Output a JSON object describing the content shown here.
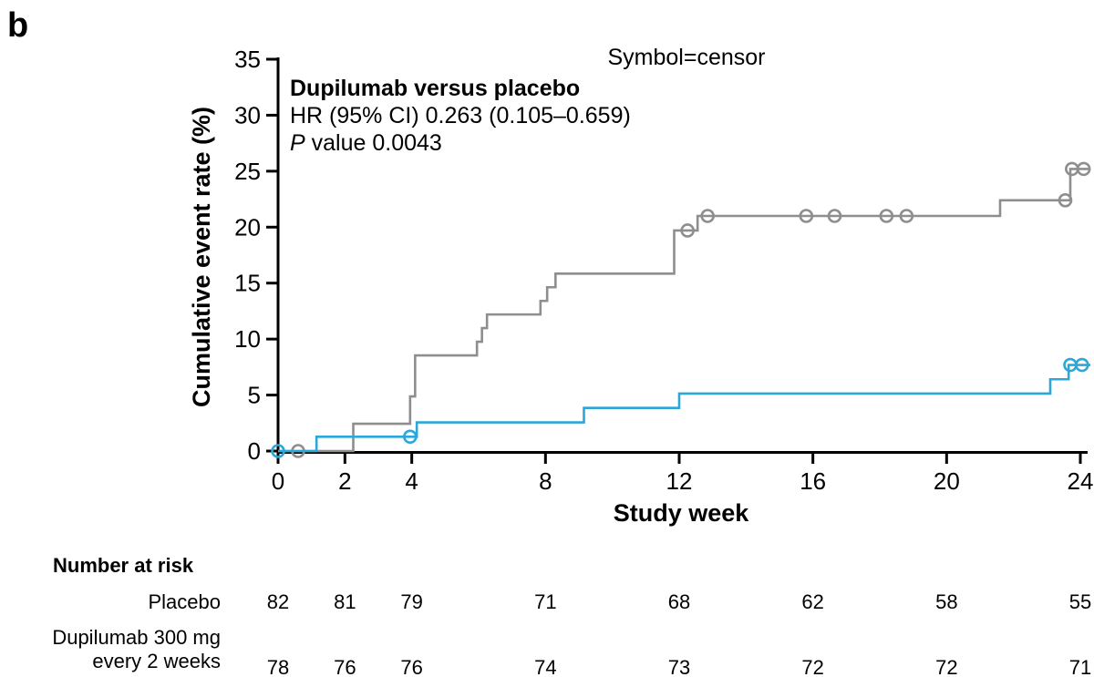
{
  "panel_label": "b",
  "annotations": {
    "censor_legend": "Symbol=censor",
    "comparison_title": "Dupilumab versus placebo",
    "hr_line": "HR (95% CI) 0.263 (0.105–0.659)",
    "p_italic": "P",
    "p_rest": " value 0.0043"
  },
  "colors": {
    "placebo": "#8E8E8E",
    "dupilumab": "#2BA7DA",
    "axis": "#000000"
  },
  "chart_data": {
    "type": "line",
    "subtype": "kaplan-meier-step",
    "title": "Dupilumab versus placebo",
    "xlabel": "Study week",
    "ylabel": "Cumulative event rate (%)",
    "xlim": [
      0,
      24.3
    ],
    "ylim": [
      0,
      35
    ],
    "x_ticks": [
      0,
      2,
      4,
      8,
      12,
      16,
      20,
      24
    ],
    "y_ticks": [
      0,
      5,
      10,
      15,
      20,
      25,
      30,
      35
    ],
    "legend_note": "Symbol=censor",
    "series": [
      {
        "name": "Placebo",
        "color": "#8E8E8E",
        "start": [
          0,
          0
        ],
        "end_week": 24.3,
        "steps": [
          [
            2.25,
            2.44
          ],
          [
            3.95,
            4.88
          ],
          [
            4.1,
            8.54
          ],
          [
            5.95,
            9.76
          ],
          [
            6.1,
            10.98
          ],
          [
            6.25,
            12.2
          ],
          [
            7.85,
            13.41
          ],
          [
            8.05,
            14.63
          ],
          [
            8.3,
            15.85
          ],
          [
            11.85,
            19.7
          ],
          [
            12.55,
            21.0
          ],
          [
            21.6,
            22.4
          ],
          [
            23.7,
            25.2
          ]
        ],
        "censors": [
          [
            0.6,
            0
          ],
          [
            12.25,
            19.7
          ],
          [
            12.85,
            21.0
          ],
          [
            15.8,
            21.0
          ],
          [
            16.65,
            21.0
          ],
          [
            18.2,
            21.0
          ],
          [
            18.8,
            21.0
          ],
          [
            23.55,
            22.4
          ],
          [
            23.75,
            25.2
          ],
          [
            24.1,
            25.2
          ]
        ]
      },
      {
        "name": "Dupilumab 300 mg every 2 weeks",
        "color": "#2BA7DA",
        "start": [
          0,
          0
        ],
        "end_week": 24.3,
        "steps": [
          [
            1.15,
            1.28
          ],
          [
            4.15,
            2.56
          ],
          [
            9.15,
            3.85
          ],
          [
            12.0,
            5.13
          ],
          [
            23.1,
            6.41
          ],
          [
            23.65,
            7.69
          ]
        ],
        "censors": [
          [
            0,
            0
          ],
          [
            3.95,
            1.28
          ],
          [
            23.7,
            7.69
          ],
          [
            24.05,
            7.69
          ]
        ]
      }
    ]
  },
  "at_risk": {
    "title": "Number at risk",
    "weeks": [
      0,
      2,
      4,
      8,
      12,
      16,
      20,
      24
    ],
    "rows": [
      {
        "label_line1": "Placebo",
        "label_line2": "",
        "values": [
          82,
          81,
          79,
          71,
          68,
          62,
          58,
          55
        ]
      },
      {
        "label_line1": "Dupilumab 300 mg",
        "label_line2": "every 2 weeks",
        "values": [
          78,
          76,
          76,
          74,
          73,
          72,
          72,
          71
        ]
      }
    ]
  }
}
